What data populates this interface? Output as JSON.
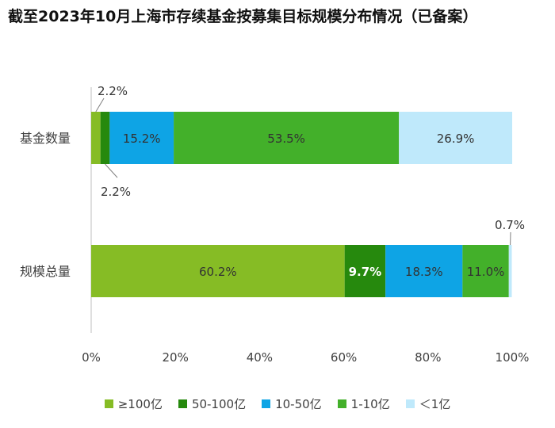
{
  "chart_data": {
    "type": "bar",
    "orientation": "horizontal",
    "stacked": true,
    "title": "截至2023年10月上海市存续基金按募集目标规模分布情况（已备案）",
    "categories": [
      "基金数量",
      "规模总量"
    ],
    "series": [
      {
        "name": "≥100亿",
        "color": "#86bc25",
        "values": [
          2.2,
          60.2
        ],
        "labels": [
          "2.2%",
          "60.2%"
        ]
      },
      {
        "name": "50-100亿",
        "color": "#26890d",
        "values": [
          2.2,
          9.7
        ],
        "labels": [
          "2.2%",
          "9.7%"
        ]
      },
      {
        "name": "10-50亿",
        "color": "#0ea4e5",
        "values": [
          15.2,
          18.3
        ],
        "labels": [
          "15.2%",
          "18.3%"
        ]
      },
      {
        "name": "1-10亿",
        "color": "#43b02a",
        "values": [
          53.5,
          11.0
        ],
        "labels": [
          "53.5%",
          "11.0%"
        ]
      },
      {
        "name": "＜1亿",
        "color": "#bfe9fb",
        "values": [
          26.9,
          0.7
        ],
        "labels": [
          "26.9%",
          "0.7%"
        ]
      }
    ],
    "xlim": [
      0,
      100
    ],
    "x_ticks": [
      "0%",
      "20%",
      "40%",
      "60%",
      "80%",
      "100%"
    ],
    "legend_position": "bottom",
    "grid": false
  }
}
